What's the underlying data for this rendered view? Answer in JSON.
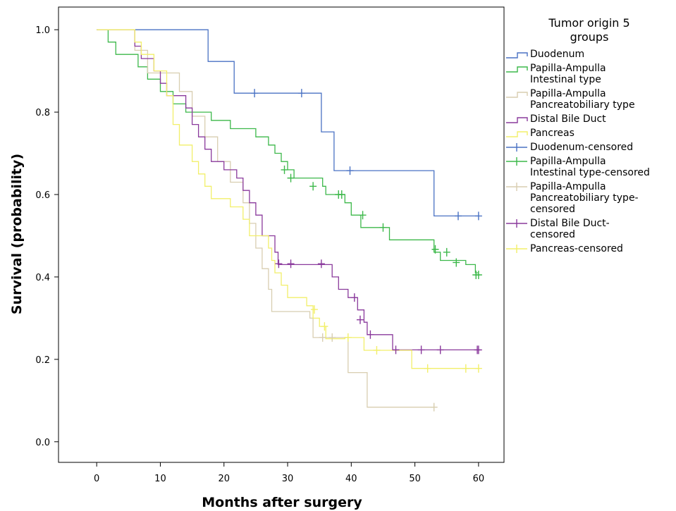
{
  "chart_data": {
    "type": "line",
    "subtype": "kaplan-meier-step",
    "xlabel": "Months after surgery",
    "ylabel": "Survival (probability)",
    "xlim": [
      -6,
      64
    ],
    "ylim": [
      -0.05,
      1.055
    ],
    "xticks": [
      0,
      10,
      20,
      30,
      40,
      50,
      60
    ],
    "yticks": [
      0.0,
      0.2,
      0.4,
      0.6,
      0.8,
      1.0
    ],
    "ytick_labels": [
      "0.0",
      "0.2",
      "0.4",
      "0.6",
      "0.8",
      "1.0"
    ],
    "grid": false,
    "legend": {
      "title": [
        "Tumor origin 5",
        "groups"
      ],
      "placement": "right",
      "entries": [
        {
          "label": [
            "Duodenum"
          ],
          "color": "#4a72c4",
          "kind": "line"
        },
        {
          "label": [
            "Papilla-Ampulla",
            "Intestinal type"
          ],
          "color": "#3cb84a",
          "kind": "line"
        },
        {
          "label": [
            "Papilla-Ampulla",
            "Pancreatobiliary type"
          ],
          "color": "#d8ceb0",
          "kind": "line"
        },
        {
          "label": [
            "Distal Bile Duct"
          ],
          "color": "#8a3a9c",
          "kind": "line"
        },
        {
          "label": [
            "Pancreas"
          ],
          "color": "#f2ef6a",
          "kind": "line"
        },
        {
          "label": [
            "Duodenum-censored"
          ],
          "color": "#4a72c4",
          "kind": "censor"
        },
        {
          "label": [
            "Papilla-Ampulla",
            "Intestinal type-censored"
          ],
          "color": "#3cb84a",
          "kind": "censor"
        },
        {
          "label": [
            "Papilla-Ampulla",
            "Pancreatobiliary type-",
            "censored"
          ],
          "color": "#d8ceb0",
          "kind": "censor"
        },
        {
          "label": [
            "Distal Bile Duct-",
            "censored"
          ],
          "color": "#8a3a9c",
          "kind": "censor"
        },
        {
          "label": [
            "Pancreas-censored"
          ],
          "color": "#f2ef6a",
          "kind": "censor"
        }
      ]
    },
    "series": [
      {
        "name": "Duodenum",
        "color": "#4a72c4",
        "steps": [
          [
            0,
            1.0
          ],
          [
            17.5,
            0.923
          ],
          [
            21.6,
            0.846
          ],
          [
            35.3,
            0.752
          ],
          [
            37.3,
            0.658
          ],
          [
            53.0,
            0.548
          ],
          [
            60.0,
            0.548
          ]
        ],
        "censored": [
          [
            24.8,
            0.846
          ],
          [
            32.2,
            0.846
          ],
          [
            39.8,
            0.658
          ],
          [
            56.8,
            0.548
          ],
          [
            60.0,
            0.548
          ]
        ]
      },
      {
        "name": "Papilla-Ampulla Intestinal type",
        "color": "#3cb84a",
        "steps": [
          [
            0,
            1.0
          ],
          [
            1.8,
            0.97
          ],
          [
            3.0,
            0.94
          ],
          [
            6.5,
            0.91
          ],
          [
            8.0,
            0.88
          ],
          [
            10.0,
            0.85
          ],
          [
            12.0,
            0.82
          ],
          [
            14.0,
            0.8
          ],
          [
            18.0,
            0.78
          ],
          [
            21.0,
            0.76
          ],
          [
            25.0,
            0.74
          ],
          [
            27.0,
            0.72
          ],
          [
            28.0,
            0.7
          ],
          [
            29.0,
            0.68
          ],
          [
            30.0,
            0.66
          ],
          [
            31.0,
            0.64
          ],
          [
            35.5,
            0.62
          ],
          [
            36.0,
            0.6
          ],
          [
            39.0,
            0.58
          ],
          [
            40.0,
            0.55
          ],
          [
            41.5,
            0.52
          ],
          [
            45.0,
            0.52
          ],
          [
            46.0,
            0.49
          ],
          [
            53.0,
            0.46
          ],
          [
            54.0,
            0.44
          ],
          [
            58.0,
            0.43
          ],
          [
            59.5,
            0.41
          ],
          [
            60.0,
            0.41
          ]
        ],
        "censored": [
          [
            29.5,
            0.66
          ],
          [
            30.5,
            0.64
          ],
          [
            34.0,
            0.62
          ],
          [
            38.0,
            0.6
          ],
          [
            38.5,
            0.6
          ],
          [
            41.8,
            0.55
          ],
          [
            45.0,
            0.52
          ],
          [
            53.2,
            0.467
          ],
          [
            55.0,
            0.46
          ],
          [
            56.5,
            0.435
          ],
          [
            59.6,
            0.405
          ],
          [
            60.0,
            0.405
          ]
        ]
      },
      {
        "name": "Papilla-Ampulla Pancreatobiliary type",
        "color": "#d8ceb0",
        "steps": [
          [
            0,
            1.0
          ],
          [
            6.0,
            0.95
          ],
          [
            8.0,
            0.895
          ],
          [
            13.0,
            0.85
          ],
          [
            15.0,
            0.79
          ],
          [
            17.0,
            0.74
          ],
          [
            19.0,
            0.68
          ],
          [
            21.0,
            0.63
          ],
          [
            23.0,
            0.58
          ],
          [
            24.0,
            0.53
          ],
          [
            25.0,
            0.47
          ],
          [
            26.0,
            0.42
          ],
          [
            27.0,
            0.37
          ],
          [
            27.5,
            0.316
          ],
          [
            33.5,
            0.3
          ],
          [
            34.0,
            0.253
          ],
          [
            39.5,
            0.168
          ],
          [
            42.5,
            0.084
          ],
          [
            53.0,
            0.084
          ]
        ],
        "censored": [
          [
            35.5,
            0.253
          ],
          [
            37.0,
            0.253
          ],
          [
            53.0,
            0.084
          ]
        ]
      },
      {
        "name": "Distal Bile Duct",
        "color": "#8a3a9c",
        "steps": [
          [
            0,
            1.0
          ],
          [
            6.0,
            0.96
          ],
          [
            7.0,
            0.93
          ],
          [
            9.0,
            0.9
          ],
          [
            10.0,
            0.87
          ],
          [
            11.0,
            0.84
          ],
          [
            14.0,
            0.81
          ],
          [
            15.0,
            0.77
          ],
          [
            16.0,
            0.74
          ],
          [
            17.0,
            0.71
          ],
          [
            18.0,
            0.68
          ],
          [
            20.0,
            0.66
          ],
          [
            22.0,
            0.64
          ],
          [
            23.0,
            0.61
          ],
          [
            24.0,
            0.58
          ],
          [
            25.0,
            0.55
          ],
          [
            26.0,
            0.5
          ],
          [
            28.0,
            0.46
          ],
          [
            28.5,
            0.43
          ],
          [
            36.0,
            0.43
          ],
          [
            37.0,
            0.4
          ],
          [
            38.0,
            0.37
          ],
          [
            39.5,
            0.35
          ],
          [
            41.0,
            0.32
          ],
          [
            42.0,
            0.29
          ],
          [
            42.5,
            0.26
          ],
          [
            46.5,
            0.223
          ],
          [
            60.0,
            0.223
          ]
        ],
        "censored": [
          [
            28.6,
            0.432
          ],
          [
            30.5,
            0.432
          ],
          [
            35.3,
            0.432
          ],
          [
            40.5,
            0.35
          ],
          [
            41.4,
            0.296
          ],
          [
            43.0,
            0.26
          ],
          [
            47.0,
            0.223
          ],
          [
            51.0,
            0.223
          ],
          [
            54.0,
            0.223
          ],
          [
            59.8,
            0.223
          ],
          [
            60.0,
            0.223
          ]
        ]
      },
      {
        "name": "Pancreas",
        "color": "#f2ef6a",
        "steps": [
          [
            0,
            1.0
          ],
          [
            6.0,
            0.97
          ],
          [
            7.0,
            0.94
          ],
          [
            9.0,
            0.9
          ],
          [
            11.0,
            0.84
          ],
          [
            12.0,
            0.77
          ],
          [
            13.0,
            0.72
          ],
          [
            15.0,
            0.68
          ],
          [
            16.0,
            0.65
          ],
          [
            17.0,
            0.62
          ],
          [
            18.0,
            0.59
          ],
          [
            21.0,
            0.57
          ],
          [
            23.0,
            0.54
          ],
          [
            24.0,
            0.5
          ],
          [
            27.0,
            0.47
          ],
          [
            27.5,
            0.44
          ],
          [
            28.0,
            0.41
          ],
          [
            29.0,
            0.38
          ],
          [
            30.0,
            0.35
          ],
          [
            33.0,
            0.33
          ],
          [
            34.0,
            0.3
          ],
          [
            35.0,
            0.28
          ],
          [
            36.0,
            0.25
          ],
          [
            38.0,
            0.25
          ],
          [
            39.0,
            0.253
          ],
          [
            42.0,
            0.222
          ],
          [
            49.0,
            0.222
          ],
          [
            49.5,
            0.178
          ],
          [
            60.0,
            0.178
          ]
        ],
        "censored": [
          [
            34.2,
            0.321
          ],
          [
            35.8,
            0.28
          ],
          [
            39.5,
            0.253
          ],
          [
            44.0,
            0.222
          ],
          [
            52.0,
            0.178
          ],
          [
            58.0,
            0.178
          ],
          [
            60.0,
            0.178
          ]
        ]
      }
    ]
  }
}
